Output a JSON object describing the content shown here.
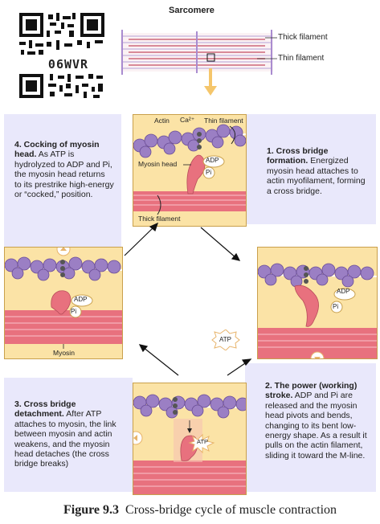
{
  "qr": {
    "code": "06WVR"
  },
  "sarcomere": {
    "title": "Sarcomere",
    "thick_label": "Thick filament",
    "thin_label": "Thin filament"
  },
  "step1": {
    "labels": {
      "actin": "Actin",
      "ca": "Ca²⁺",
      "thin": "Thin filament",
      "myosin_head": "Myosin head",
      "adp": "ADP",
      "pi": "Pi",
      "thick": "Thick filament"
    },
    "heading": "1. Cross bridge formation.",
    "text": " Energized myosin head attaches to actin myofilament, forming a cross bridge."
  },
  "step2": {
    "labels": {
      "adp": "ADP",
      "pi": "Pi",
      "atp": "ATP"
    },
    "heading": "2. The power (working) stroke.",
    "text": " ADP and Pi are released and the myosin head pivots and bends, changing to its bent low-energy shape. As a result it pulls on the actin filament, sliding it toward the M-line."
  },
  "step3": {
    "labels": {
      "atp": "ATP"
    },
    "heading": "3. Cross bridge detachment.",
    "text": " After ATP attaches to myosin, the link between myosin and actin weakens, and the myosin head detaches (the cross bridge breaks)"
  },
  "step4": {
    "labels": {
      "adp": "ADP",
      "pi": "Pi",
      "myosin": "Myosin"
    },
    "heading": "4. Cocking of myosin head.",
    "text": " As ATP is hydrolyzed to ADP and Pi, the myosin head returns to its prestrike high-energy or “cocked,” position."
  },
  "caption": {
    "label": "Figure 9.3",
    "text": "Cross-bridge cycle of muscle contraction"
  },
  "colors": {
    "actin": "#9b7fc4",
    "myosin": "#e8717e",
    "panel": "#e9e8fb",
    "box": "#fbe3a6",
    "arrow_gold": "#f5c66b"
  }
}
